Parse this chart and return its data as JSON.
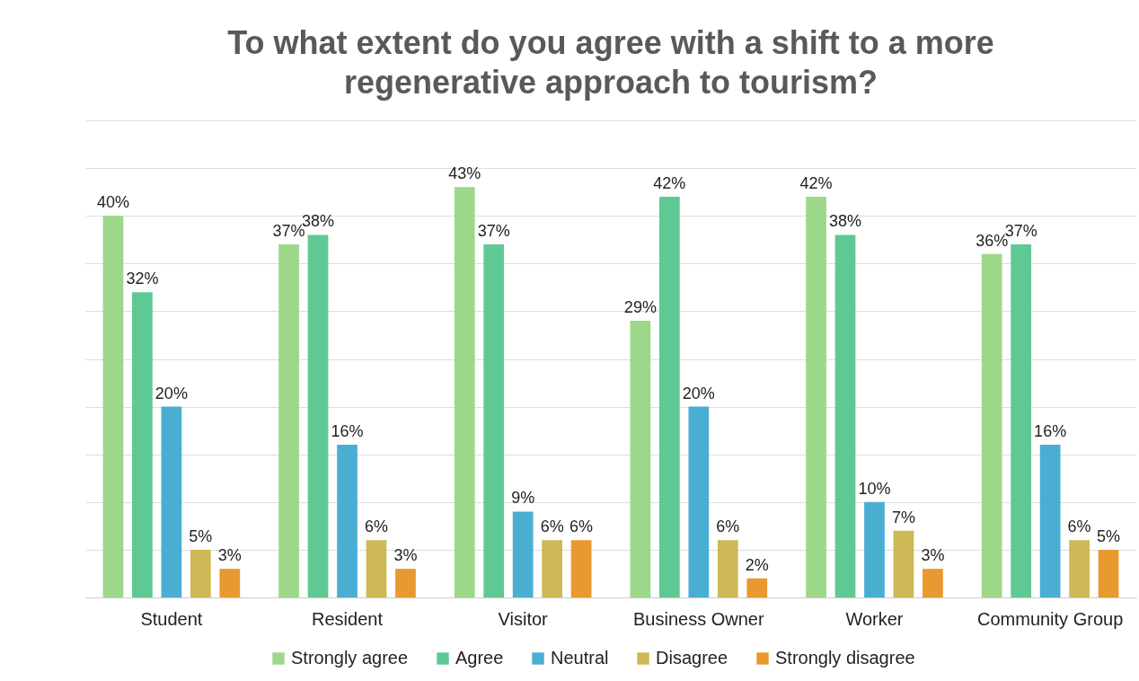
{
  "chart_data": {
    "type": "bar",
    "title": "To what extent do you agree with a shift to a more regenerative approach to tourism?",
    "categories": [
      "Student",
      "Resident",
      "Visitor",
      "Business Owner",
      "Worker",
      "Community Group"
    ],
    "series": [
      {
        "name": "Strongly agree",
        "color": "#9dd88a",
        "values": [
          40,
          37,
          43,
          29,
          42,
          36
        ],
        "value_labels": [
          "40%",
          "37%",
          "43%",
          "29%",
          "42%",
          "36%"
        ]
      },
      {
        "name": "Agree",
        "color": "#5ec994",
        "values": [
          32,
          38,
          37,
          42,
          38,
          37
        ],
        "value_labels": [
          "32%",
          "38%",
          "37%",
          "42%",
          "38%",
          "37%"
        ]
      },
      {
        "name": "Neutral",
        "color": "#4aaed3",
        "values": [
          20,
          16,
          9,
          20,
          10,
          16
        ],
        "value_labels": [
          "20%",
          "16%",
          "9%",
          "20%",
          "10%",
          "16%"
        ]
      },
      {
        "name": "Disagree",
        "color": "#cdb955",
        "values": [
          5,
          6,
          6,
          6,
          7,
          6
        ],
        "value_labels": [
          "5%",
          "6%",
          "6%",
          "6%",
          "7%",
          "6%"
        ]
      },
      {
        "name": "Strongly disagree",
        "color": "#e8992f",
        "values": [
          3,
          3,
          6,
          2,
          3,
          5
        ],
        "value_labels": [
          "3%",
          "3%",
          "6%",
          "2%",
          "3%",
          "5%"
        ]
      }
    ],
    "yticks": [
      {
        "value": 0,
        "label": null
      },
      {
        "value": 5,
        "label": null
      },
      {
        "value": 10,
        "label": null
      },
      {
        "value": 15,
        "label": null
      },
      {
        "value": 20,
        "label": null
      },
      {
        "value": 25,
        "label": null
      },
      {
        "value": 30,
        "label": null
      },
      {
        "value": 35,
        "label": null
      },
      {
        "value": 40,
        "label": null
      },
      {
        "value": 45,
        "label": null
      },
      {
        "value": 50,
        "label": null
      }
    ],
    "tick_labels": "x",
    "grid": "y",
    "legend": "bottom"
  }
}
